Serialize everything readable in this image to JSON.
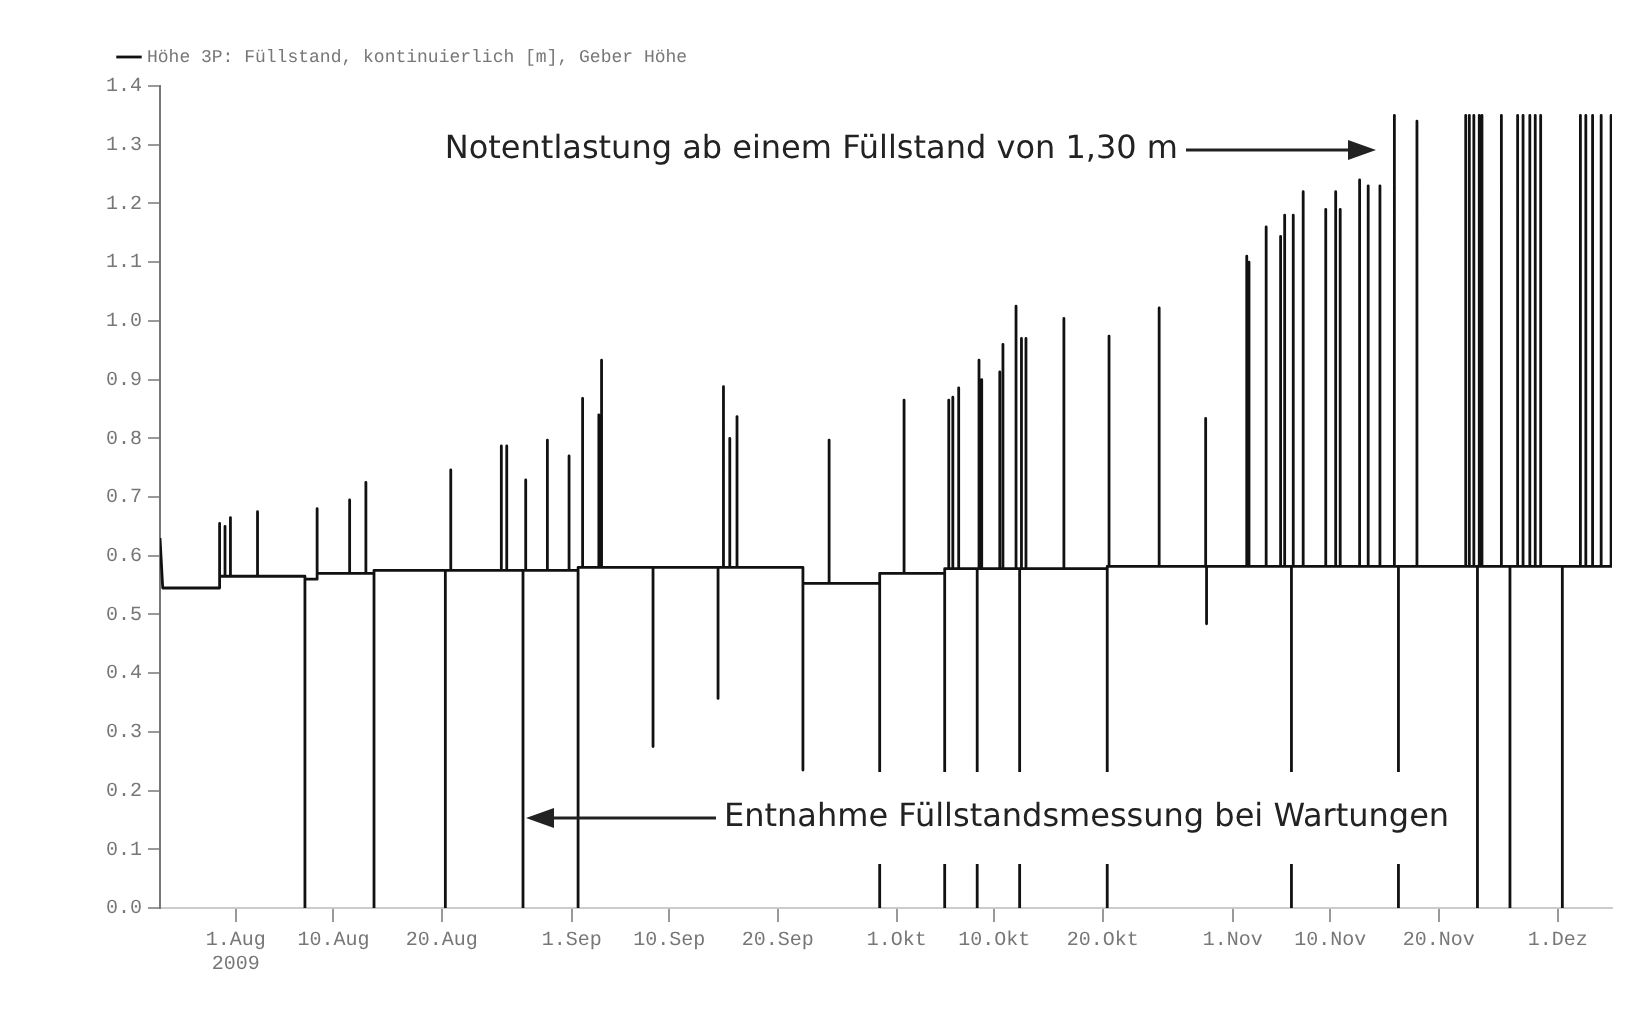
{
  "chart_data": {
    "type": "line",
    "legend": "top left",
    "marker": "none",
    "line_style": "solid",
    "xticks": [
      {
        "value": "2009-08-01",
        "label": "1.Aug\n2009"
      },
      {
        "value": "2009-08-10",
        "label": "10.Aug"
      },
      {
        "value": "2009-08-20",
        "label": "20.Aug"
      },
      {
        "value": "2009-09-01",
        "label": "1.Sep"
      },
      {
        "value": "2009-09-10",
        "label": "10.Sep"
      },
      {
        "value": "2009-09-20",
        "label": "20.Sep"
      },
      {
        "value": "2009-10-01",
        "label": "1.Okt"
      },
      {
        "value": "2009-10-10",
        "label": "10.Okt"
      },
      {
        "value": "2009-10-20",
        "label": "20.Okt"
      },
      {
        "value": "2009-11-01",
        "label": "1.Nov"
      },
      {
        "value": "2009-11-10",
        "label": "10.Nov"
      },
      {
        "value": "2009-11-20",
        "label": "20.Nov"
      },
      {
        "value": "2009-12-01",
        "label": "1.Dez"
      }
    ],
    "xlim": [
      "2009-07-25",
      "2009-12-06"
    ],
    "ylim": [
      0,
      1.4
    ],
    "yticks": [
      {
        "value": 0,
        "label": "0.0"
      },
      0.1,
      0.2,
      0.3,
      0.4,
      0.5,
      0.6,
      0.7,
      0.8,
      0.9,
      {
        "value": 1,
        "label": "1.0"
      },
      1.1,
      1.2,
      1.3,
      1.4
    ],
    "annotations": [
      "Notentlastung ab einem Füllstand von 1,30 m",
      "Entnahme Füllstandsmessung bei Wartungen"
    ],
    "series": [
      {
        "name": "Höhe 3P: Füllstand, kontinuierlich [m], Geber Höhe",
        "color": "#111111",
        "x": [
          "2009-07-25T00:00",
          "2009-07-25T06:00",
          "2009-07-30T12:00",
          "2009-07-30T12:00",
          "2009-07-30T12:00",
          "2009-07-31T00:00",
          "2009-07-31T00:00",
          "2009-07-31T00:00",
          "2009-07-31T12:00",
          "2009-07-31T12:00",
          "2009-07-31T12:00",
          "2009-08-03T00:00",
          "2009-08-03T00:00",
          "2009-08-03T00:00",
          "2009-08-07T09:00",
          "2009-08-07T09:00",
          "2009-08-07T09:00",
          "2009-08-08T12:00",
          "2009-08-08T12:00",
          "2009-08-08T12:00",
          "2009-08-11T12:00",
          "2009-08-11T12:00",
          "2009-08-11T12:00",
          "2009-08-13T00:00",
          "2009-08-13T00:00",
          "2009-08-13T00:00",
          "2009-08-13T18:00",
          "2009-08-13T18:00",
          "2009-08-13T18:00",
          "2009-08-20T08:00",
          "2009-08-20T08:00",
          "2009-08-20T08:00",
          "2009-08-20T20:00",
          "2009-08-20T20:00",
          "2009-08-20T20:00",
          "2009-08-25T12:00",
          "2009-08-25T12:00",
          "2009-08-25T12:00",
          "2009-08-26T00:00",
          "2009-08-26T00:00",
          "2009-08-26T00:00",
          "2009-08-27T12:00",
          "2009-08-27T12:00",
          "2009-08-27T12:00",
          "2009-08-27T18:00",
          "2009-08-27T18:00",
          "2009-08-27T18:00",
          "2009-08-29T18:00",
          "2009-08-29T18:00",
          "2009-08-29T18:00",
          "2009-08-31T18:00",
          "2009-08-31T18:00",
          "2009-08-31T18:00",
          "2009-09-01T14:00",
          "2009-09-01T14:00",
          "2009-09-01T14:00",
          "2009-09-02T00:00",
          "2009-09-02T00:00",
          "2009-09-02T00:00",
          "2009-09-03T12:00",
          "2009-09-03T12:00",
          "2009-09-03T12:00",
          "2009-09-03T18:00",
          "2009-09-03T18:00",
          "2009-09-03T18:00",
          "2009-09-08T12:00",
          "2009-09-08T12:00",
          "2009-09-08T12:00",
          "2009-09-14T12:00",
          "2009-09-14T12:00",
          "2009-09-14T12:00",
          "2009-09-15T00:00",
          "2009-09-15T00:00",
          "2009-09-15T00:00",
          "2009-09-15T14:00",
          "2009-09-15T14:00",
          "2009-09-15T14:00",
          "2009-09-16T06:00",
          "2009-09-16T06:00",
          "2009-09-16T06:00",
          "2009-09-22T08:00",
          "2009-09-22T08:00",
          "2009-09-22T08:00",
          "2009-09-24T18:00",
          "2009-09-24T18:00",
          "2009-09-24T18:00",
          "2009-09-29T10:00",
          "2009-09-29T10:00",
          "2009-09-29T10:00",
          "2009-10-01T16:00",
          "2009-10-01T16:00",
          "2009-10-01T16:00",
          "2009-10-05T10:00",
          "2009-10-05T10:00",
          "2009-10-05T10:00",
          "2009-10-05T19:00",
          "2009-10-05T19:00",
          "2009-10-05T19:00",
          "2009-10-06T04:00",
          "2009-10-06T04:00",
          "2009-10-06T04:00",
          "2009-10-06T17:00",
          "2009-10-06T17:00",
          "2009-10-06T17:00",
          "2009-10-08T10:00",
          "2009-10-08T10:00",
          "2009-10-08T10:00",
          "2009-10-08T14:00",
          "2009-10-08T14:00",
          "2009-10-08T14:00",
          "2009-10-08T20:00",
          "2009-10-08T20:00",
          "2009-10-08T20:00",
          "2009-10-10T12:00",
          "2009-10-10T12:00",
          "2009-10-10T12:00",
          "2009-10-10T19:00",
          "2009-10-10T19:00",
          "2009-10-10T19:00",
          "2009-10-12T00:00",
          "2009-10-12T00:00",
          "2009-10-12T00:00",
          "2009-10-12T08:00",
          "2009-10-12T08:00",
          "2009-10-12T08:00",
          "2009-10-12T12:00",
          "2009-10-12T12:00",
          "2009-10-12T12:00",
          "2009-10-12T22:00",
          "2009-10-12T22:00",
          "2009-10-12T22:00",
          "2009-10-16T10:00",
          "2009-10-16T10:00",
          "2009-10-16T10:00",
          "2009-10-20T10:00",
          "2009-10-20T10:00",
          "2009-10-20T10:00",
          "2009-10-20T14:00",
          "2009-10-20T14:00",
          "2009-10-20T14:00",
          "2009-10-25T05:00",
          "2009-10-25T05:00",
          "2009-10-25T05:00",
          "2009-10-29T12:00",
          "2009-10-29T12:00",
          "2009-10-29T12:00",
          "2009-10-29T14:00",
          "2009-10-29T14:00",
          "2009-10-29T14:00",
          "2009-11-02T07:00",
          "2009-11-02T07:00",
          "2009-11-02T07:00",
          "2009-11-02T12:00",
          "2009-11-02T12:00",
          "2009-11-02T12:00",
          "2009-11-04T02:00",
          "2009-11-04T02:00",
          "2009-11-04T02:00",
          "2009-11-05T10:00",
          "2009-11-05T10:00",
          "2009-11-05T10:00",
          "2009-11-05T19:00",
          "2009-11-05T19:00",
          "2009-11-05T19:00",
          "2009-11-06T10:00",
          "2009-11-06T10:00",
          "2009-11-06T10:00",
          "2009-11-06T14:00",
          "2009-11-06T14:00",
          "2009-11-06T14:00",
          "2009-11-07T12:00",
          "2009-11-07T12:00",
          "2009-11-07T12:00",
          "2009-11-09T14:00",
          "2009-11-09T14:00",
          "2009-11-09T14:00",
          "2009-11-10T12:00",
          "2009-11-10T12:00",
          "2009-11-10T12:00",
          "2009-11-10T22:00",
          "2009-11-10T22:00",
          "2009-11-10T22:00",
          "2009-11-12T17:00",
          "2009-11-12T17:00",
          "2009-11-12T17:00",
          "2009-11-13T12:00",
          "2009-11-13T12:00",
          "2009-11-13T12:00",
          "2009-11-14T14:00",
          "2009-11-14T14:00",
          "2009-11-14T14:00",
          "2009-11-15T22:00",
          "2009-11-15T22:00",
          "2009-11-15T22:00",
          "2009-11-16T07:00",
          "2009-11-16T07:00",
          "2009-11-16T07:00",
          "2009-11-18T00:00",
          "2009-11-18T00:00",
          "2009-11-18T00:00",
          "2009-11-22T12:00",
          "2009-11-22T12:00",
          "2009-11-22T12:00",
          "2009-11-22T20:00",
          "2009-11-22T20:00",
          "2009-11-22T20:00",
          "2009-11-23T06:00",
          "2009-11-23T06:00",
          "2009-11-23T06:00",
          "2009-11-23T14:00",
          "2009-11-23T14:00",
          "2009-11-23T14:00",
          "2009-11-23T18:00",
          "2009-11-23T18:00",
          "2009-11-23T18:00",
          "2009-11-24T00:00",
          "2009-11-24T00:00",
          "2009-11-24T00:00",
          "2009-11-25T19:00",
          "2009-11-25T19:00",
          "2009-11-25T19:00",
          "2009-11-26T14:00",
          "2009-11-26T14:00",
          "2009-11-26T14:00",
          "2009-11-27T07:00",
          "2009-11-27T07:00",
          "2009-11-27T07:00",
          "2009-11-27T19:00",
          "2009-11-27T19:00",
          "2009-11-27T19:00",
          "2009-11-28T10:00",
          "2009-11-28T10:00",
          "2009-11-28T10:00",
          "2009-11-28T22:00",
          "2009-11-28T22:00",
          "2009-11-28T22:00",
          "2009-11-29T10:00",
          "2009-11-29T10:00",
          "2009-11-29T10:00",
          "2009-12-01T10:00",
          "2009-12-01T10:00",
          "2009-12-01T10:00",
          "2009-12-03T02:00",
          "2009-12-03T02:00",
          "2009-12-03T02:00",
          "2009-12-03T14:00",
          "2009-12-03T14:00",
          "2009-12-03T14:00",
          "2009-12-04T05:00",
          "2009-12-04T05:00",
          "2009-12-04T05:00",
          "2009-12-05T00:00",
          "2009-12-05T00:00",
          "2009-12-05T00:00",
          "2009-12-05T22:00",
          "2009-12-05T22:00",
          "2009-12-05T22:00",
          "2009-12-06T00:00"
        ],
        "values": [
          0.63,
          0.545,
          0.545,
          0.655,
          0.565,
          0.565,
          0.65,
          0.565,
          0.565,
          0.665,
          0.565,
          0.565,
          0.675,
          0.565,
          0.565,
          0,
          0.56,
          0.56,
          0.68,
          0.57,
          0.57,
          0.695,
          0.57,
          0.57,
          0.725,
          0.57,
          0.57,
          0,
          0.575,
          0.575,
          0,
          0.575,
          0.575,
          0.746,
          0.575,
          0.575,
          0.787,
          0.575,
          0.575,
          0.787,
          0.575,
          0.575,
          0,
          0.575,
          0.575,
          0.729,
          0.575,
          0.575,
          0.797,
          0.575,
          0.575,
          0.77,
          0.575,
          0.575,
          0,
          0.58,
          0.58,
          0.868,
          0.58,
          0.58,
          0.84,
          0.58,
          0.58,
          0.933,
          0.58,
          0.58,
          0.275,
          0.58,
          0.58,
          0.357,
          0.58,
          0.58,
          0.888,
          0.58,
          0.58,
          0.8,
          0.58,
          0.58,
          0.837,
          0.58,
          0.58,
          0.235,
          0.553,
          0.553,
          0.797,
          0.553,
          0.553,
          0,
          0.57,
          0.57,
          0.865,
          0.57,
          0.57,
          0,
          0.578,
          0.578,
          0.865,
          0.578,
          0.578,
          0.87,
          0.578,
          0.578,
          0.886,
          0.578,
          0.578,
          0,
          0.578,
          0.578,
          0.933,
          0.578,
          0.578,
          0.9,
          0.578,
          0.578,
          0.913,
          0.578,
          0.578,
          0.96,
          0.578,
          0.578,
          1.025,
          0.578,
          0.578,
          0,
          0.578,
          0.578,
          0.97,
          0.578,
          0.578,
          0.97,
          0.578,
          0.578,
          1.004,
          0.578,
          0.578,
          0,
          0.582,
          0.582,
          0.974,
          0.582,
          0.582,
          1.022,
          0.582,
          0.582,
          0.834,
          0.582,
          0.582,
          0.484,
          0.582,
          0.582,
          1.11,
          0.582,
          0.582,
          1.1,
          0.582,
          0.582,
          1.16,
          0.582,
          0.582,
          1.144,
          0.582,
          0.582,
          1.18,
          0.582,
          0.582,
          0,
          0.582,
          0.582,
          1.18,
          0.582,
          0.582,
          1.22,
          0.582,
          0.582,
          1.19,
          0.582,
          0.582,
          1.22,
          0.582,
          0.582,
          1.19,
          0.582,
          0.582,
          1.24,
          0.582,
          0.582,
          1.23,
          0.582,
          0.582,
          1.23,
          0.582,
          0.582,
          1.35,
          0.582,
          0.582,
          0,
          0.582,
          0.582,
          1.34,
          0.582,
          0.582,
          1.35,
          0.582,
          0.582,
          1.35,
          0.582,
          0.582,
          1.35,
          0.582,
          0.582,
          0,
          0.582,
          0.582,
          1.35,
          0.582,
          0.582,
          1.35,
          0.582,
          0.582,
          1.35,
          0.582,
          0.582,
          0,
          0.582,
          0.582,
          1.35,
          0.582,
          0.582,
          1.35,
          0.582,
          0.582,
          1.35,
          0.582,
          0.582,
          1.35,
          0.582,
          0.582,
          1.35,
          0.582,
          0.582,
          0,
          0.582,
          0.582,
          1.35,
          0.582,
          0.582,
          1.35,
          0.582,
          0.582,
          1.35,
          0.582,
          0.582,
          1.35,
          0.582,
          0.582,
          1.35,
          0.582,
          0.582
        ]
      }
    ]
  }
}
